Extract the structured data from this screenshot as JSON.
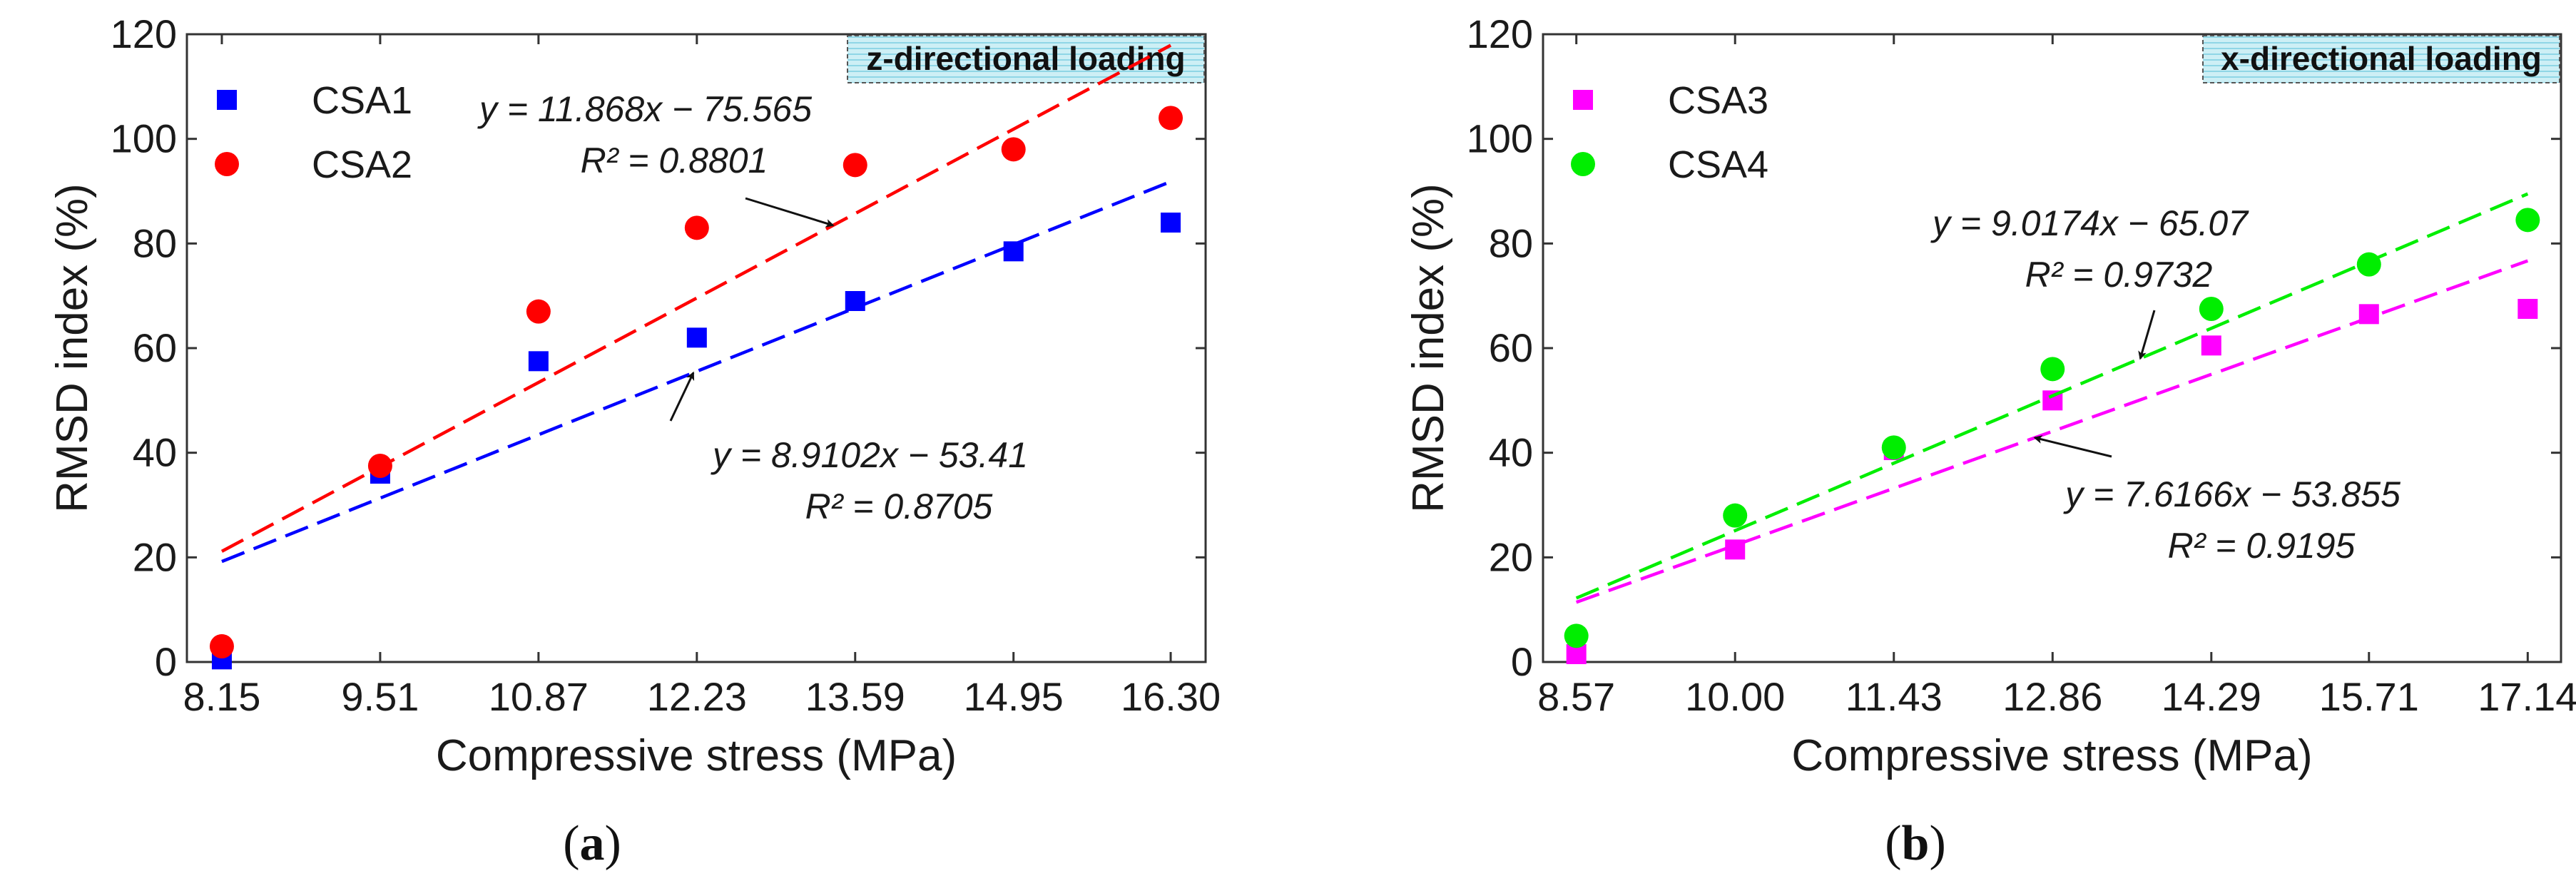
{
  "chart_data": [
    {
      "type": "scatter",
      "panel_label": "a",
      "panel_label_text": {
        "open": "(",
        "letter": "a",
        "close": ")"
      },
      "badge": "z-directional loading",
      "xlabel": "Compressive stress (MPa)",
      "ylabel": "RMSD index (%)",
      "xlim": [
        7.85,
        16.6
      ],
      "ylim": [
        0,
        120
      ],
      "xticks": [
        8.15,
        9.51,
        10.87,
        12.23,
        13.59,
        14.95,
        16.3
      ],
      "xtick_labels": [
        "8.15",
        "9.51",
        "10.87",
        "12.23",
        "13.59",
        "14.95",
        "16.30"
      ],
      "yticks": [
        0,
        20,
        40,
        60,
        80,
        100,
        120
      ],
      "ytick_labels": [
        "0",
        "20",
        "40",
        "60",
        "80",
        "100",
        "120"
      ],
      "legend_position": "top-left",
      "series": [
        {
          "name": "CSA1",
          "marker": "square",
          "color": "#0000ff",
          "x": [
            8.15,
            9.51,
            10.87,
            12.23,
            13.59,
            14.95,
            16.3
          ],
          "y": [
            0.5,
            36,
            57.5,
            62,
            69,
            78.5,
            84
          ],
          "fit": {
            "slope": 8.9102,
            "intercept": -53.41,
            "x0": 8.15,
            "x1": 16.3
          },
          "equation": "y = 8.9102x − 53.41",
          "r2": "R² = 0.8705",
          "arrow_to_x": 12.2
        },
        {
          "name": "CSA2",
          "marker": "circle",
          "color": "#ff0000",
          "x": [
            8.15,
            9.51,
            10.87,
            12.23,
            13.59,
            14.95,
            16.3
          ],
          "y": [
            3,
            37.5,
            67,
            83,
            95,
            98,
            104
          ],
          "fit": {
            "slope": 11.868,
            "intercept": -75.565,
            "x0": 8.15,
            "x1": 16.3
          },
          "equation": "y = 11.868x − 75.565",
          "r2": "R² = 0.8801",
          "arrow_to_x": 13.4
        }
      ]
    },
    {
      "type": "scatter",
      "panel_label": "b",
      "panel_label_text": {
        "open": "(",
        "letter": "b",
        "close": ")"
      },
      "badge": "x-directional loading",
      "xlabel": "Compressive stress (MPa)",
      "ylabel": "RMSD index (%)",
      "xlim": [
        8.27,
        17.44
      ],
      "ylim": [
        0,
        120
      ],
      "xticks": [
        8.57,
        10.0,
        11.43,
        12.86,
        14.29,
        15.71,
        17.14
      ],
      "xtick_labels": [
        "8.57",
        "10.00",
        "11.43",
        "12.86",
        "14.29",
        "15.71",
        "17.14"
      ],
      "yticks": [
        0,
        20,
        40,
        60,
        80,
        100,
        120
      ],
      "ytick_labels": [
        "0",
        "20",
        "40",
        "60",
        "80",
        "100",
        "120"
      ],
      "legend_position": "top-left",
      "series": [
        {
          "name": "CSA3",
          "marker": "square",
          "color": "#ff00ff",
          "x": [
            8.57,
            10.0,
            11.43,
            12.86,
            14.29,
            15.71,
            17.14
          ],
          "y": [
            1.5,
            21.5,
            40.5,
            50,
            60.5,
            66.5,
            67.5
          ],
          "fit": {
            "slope": 7.6166,
            "intercept": -53.855,
            "x0": 8.57,
            "x1": 17.14
          },
          "equation": "y = 7.6166x − 53.855",
          "r2": "R² = 0.9195",
          "arrow_to_x": 12.7
        },
        {
          "name": "CSA4",
          "marker": "circle",
          "color": "#00ee00",
          "x": [
            8.57,
            10.0,
            11.43,
            12.86,
            14.29,
            15.71,
            17.14
          ],
          "y": [
            5,
            28,
            41,
            56,
            67.5,
            76,
            84.5
          ],
          "fit": {
            "slope": 9.0174,
            "intercept": -65.07,
            "x0": 8.57,
            "x1": 17.14
          },
          "equation": "y = 9.0174x − 65.07",
          "r2": "R² = 0.9732",
          "arrow_to_x": 13.65
        }
      ]
    }
  ]
}
